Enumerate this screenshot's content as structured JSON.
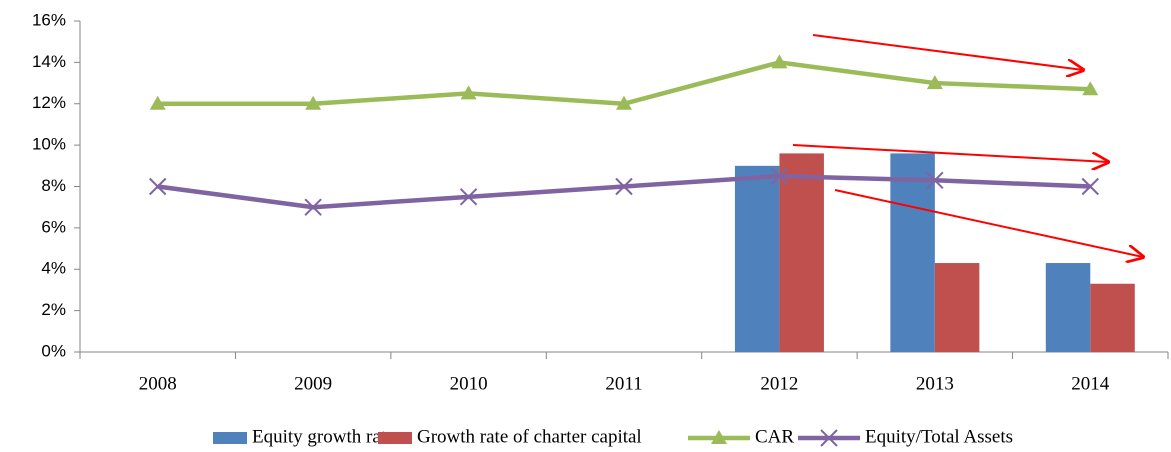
{
  "chart_data": {
    "type": "bar_line",
    "categories": [
      "2008",
      "2009",
      "2010",
      "2011",
      "2012",
      "2013",
      "2014"
    ],
    "series": [
      {
        "name": "Equity growth rate",
        "type": "bar",
        "color": "#4f81bd",
        "values": [
          null,
          null,
          null,
          null,
          9.0,
          9.6,
          4.3
        ]
      },
      {
        "name": "Growth rate of charter capital",
        "type": "bar",
        "color": "#c0504d",
        "values": [
          null,
          null,
          null,
          null,
          9.6,
          4.3,
          3.3
        ]
      },
      {
        "name": "CAR",
        "type": "line",
        "marker": "triangle",
        "color": "#9bbb59",
        "values": [
          12,
          12,
          12.5,
          12,
          14,
          13,
          12.7
        ]
      },
      {
        "name": "Equity/Total Assets",
        "type": "line",
        "marker": "x",
        "color": "#8064a2",
        "values": [
          8,
          7,
          7.5,
          8,
          8.5,
          8.3,
          8
        ]
      }
    ],
    "ylim": [
      0,
      16
    ],
    "yticks": [
      {
        "value": 0,
        "label": "0%"
      },
      {
        "value": 2,
        "label": "2%"
      },
      {
        "value": 4,
        "label": "4%"
      },
      {
        "value": 6,
        "label": "6%"
      },
      {
        "value": 8,
        "label": "8%"
      },
      {
        "value": 10,
        "label": "10%"
      },
      {
        "value": 12,
        "label": "12%"
      },
      {
        "value": 14,
        "label": "14%"
      },
      {
        "value": 16,
        "label": "16%"
      }
    ],
    "grid": false,
    "legend": "bottom"
  }
}
